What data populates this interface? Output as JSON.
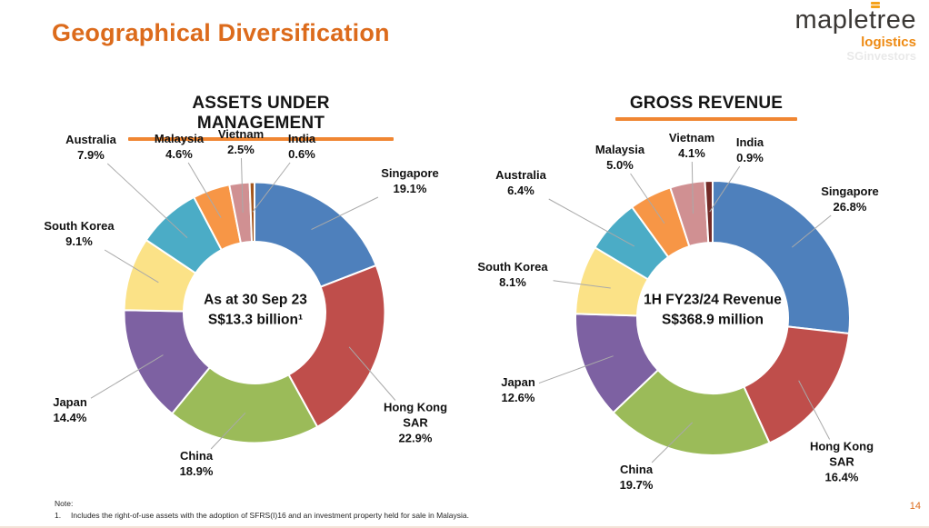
{
  "slide": {
    "title": "Geographical Diversification",
    "page_number": "14",
    "note_label": "Note:",
    "note_number": "1.",
    "note_text": "Includes the right-of-use assets with the adoption of SFRS(I)16 and an investment property held for sale in Malaysia."
  },
  "logo": {
    "word_pre": "maple",
    "word_t": "t",
    "word_post": "ree",
    "sub": "logistics",
    "watermark": "SGinvestors"
  },
  "colors": {
    "title_orange": "#DC6B1C",
    "underline_orange": "#F08632",
    "leader_line_gray": "#A9A9A9"
  },
  "chart_data": [
    {
      "id": "aum",
      "type": "pie",
      "subtype": "donut",
      "title": "ASSETS UNDER MANAGEMENT",
      "center_line1": "As at 30 Sep 23",
      "center_line2": "S$13.3 billion¹",
      "unit": "%",
      "start_angle_deg": 0,
      "direction": "clockwise",
      "categories": [
        "Singapore",
        "Hong Kong SAR",
        "China",
        "Japan",
        "South Korea",
        "Australia",
        "Malaysia",
        "Vietnam",
        "India"
      ],
      "values": [
        19.1,
        22.9,
        18.9,
        14.4,
        9.1,
        7.9,
        4.6,
        2.5,
        0.6
      ],
      "value_labels": [
        "19.1%",
        "22.9%",
        "18.9%",
        "14.4%",
        "9.1%",
        "7.9%",
        "4.6%",
        "2.5%",
        "0.6%"
      ],
      "label_lines": [
        [
          "Singapore"
        ],
        [
          "Hong Kong",
          "SAR"
        ],
        [
          "China"
        ],
        [
          "Japan"
        ],
        [
          "South Korea"
        ],
        [
          "Australia"
        ],
        [
          "Malaysia"
        ],
        [
          "Vietnam"
        ],
        [
          "India"
        ]
      ],
      "colors": [
        "#4E80BC",
        "#BF4E4B",
        "#9BBB59",
        "#7D61A2",
        "#FBE287",
        "#4BACC6",
        "#F79646",
        "#D09092",
        "#A4571E"
      ]
    },
    {
      "id": "revenue",
      "type": "pie",
      "subtype": "donut",
      "title": "GROSS REVENUE",
      "center_line1": "1H FY23/24 Revenue",
      "center_line2": "S$368.9 million",
      "unit": "%",
      "start_angle_deg": 0,
      "direction": "clockwise",
      "categories": [
        "Singapore",
        "Hong Kong SAR",
        "China",
        "Japan",
        "South Korea",
        "Australia",
        "Malaysia",
        "Vietnam",
        "India"
      ],
      "values": [
        26.8,
        16.4,
        19.7,
        12.6,
        8.1,
        6.4,
        5.0,
        4.1,
        0.9
      ],
      "value_labels": [
        "26.8%",
        "16.4%",
        "19.7%",
        "12.6%",
        "8.1%",
        "6.4%",
        "5.0%",
        "4.1%",
        "0.9%"
      ],
      "label_lines": [
        [
          "Singapore"
        ],
        [
          "Hong Kong",
          "SAR"
        ],
        [
          "China"
        ],
        [
          "Japan"
        ],
        [
          "South Korea"
        ],
        [
          "Australia"
        ],
        [
          "Malaysia"
        ],
        [
          "Vietnam"
        ],
        [
          "India"
        ]
      ],
      "colors": [
        "#4E80BC",
        "#BF4E4B",
        "#9BBB59",
        "#7D61A2",
        "#FBE287",
        "#4BACC6",
        "#F79646",
        "#D09092",
        "#732B28"
      ]
    }
  ]
}
